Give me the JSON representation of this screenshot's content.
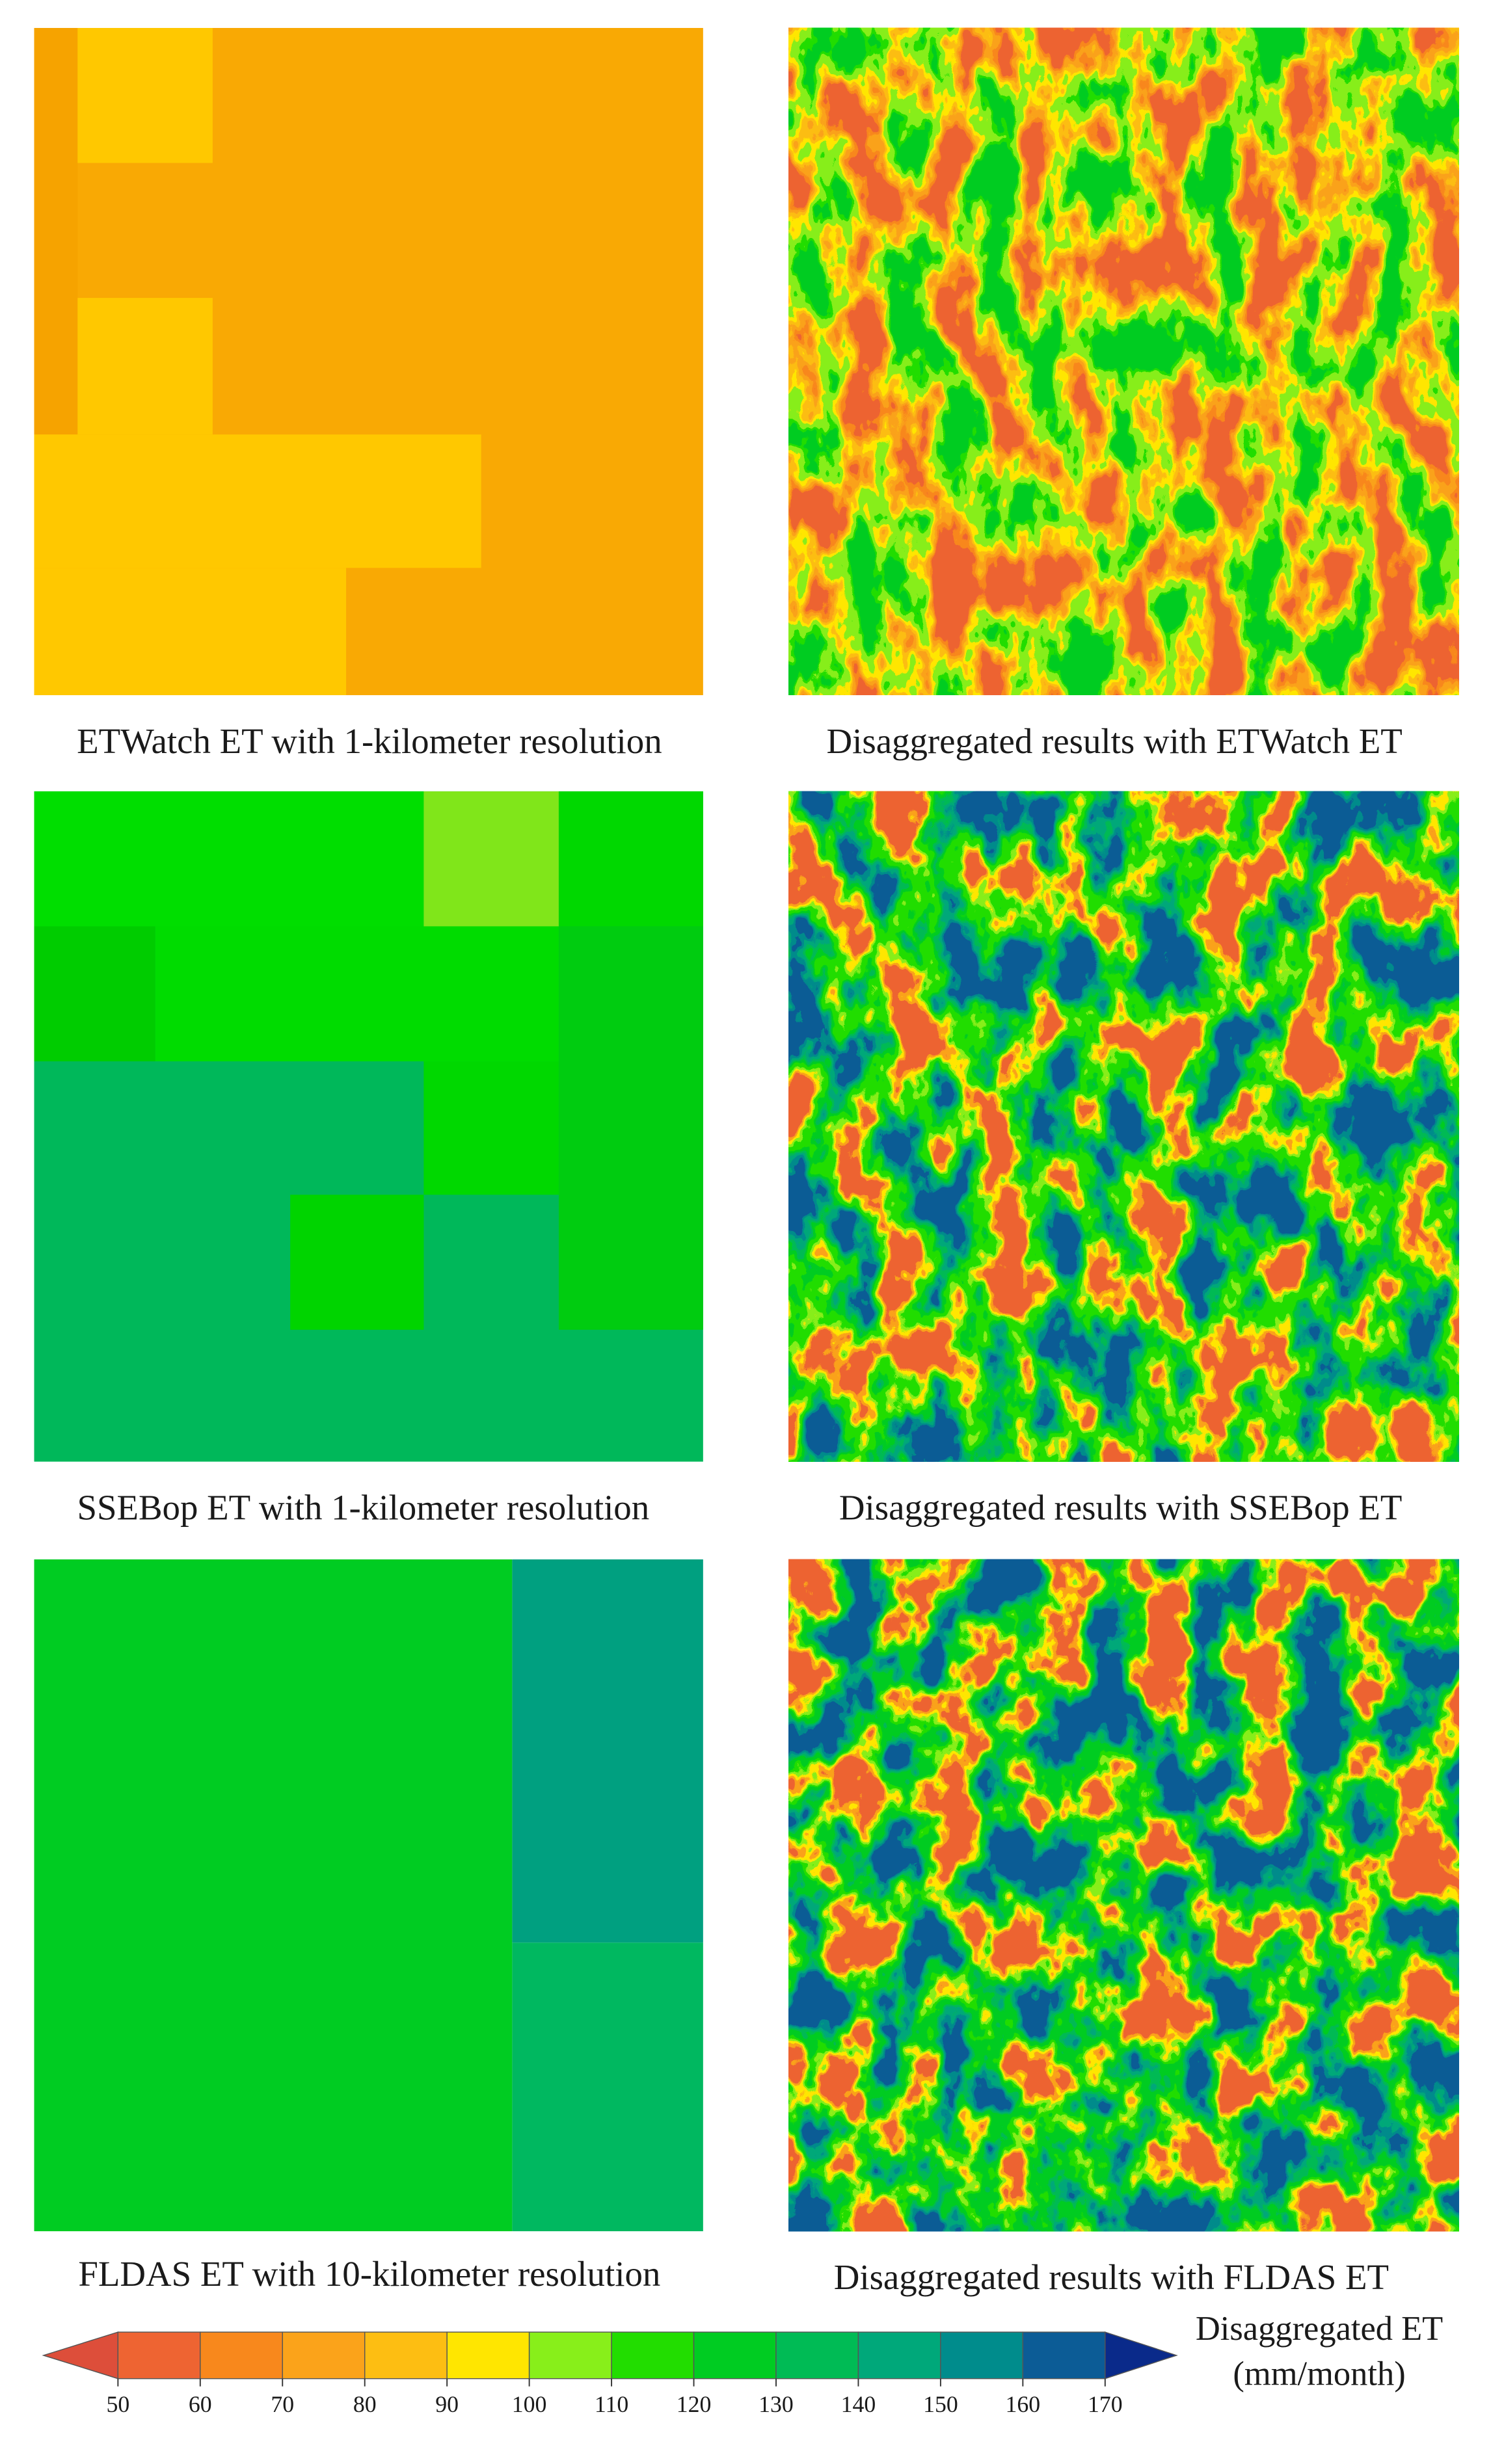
{
  "panels": [
    {
      "caption": "ETWatch ET with 1-kilometer resolution"
    },
    {
      "caption": "Disaggregated results with ETWatch ET"
    },
    {
      "caption": "SSEBop ET with 1-kilometer resolution"
    },
    {
      "caption": "Disaggregated results with SSEBop ET"
    },
    {
      "caption": "FLDAS ET with 10-kilometer resolution"
    },
    {
      "caption": "Disaggregated results with FLDAS ET"
    }
  ],
  "colorbar": {
    "title": "Disaggregated ET",
    "unit": "(mm/month)",
    "ticks": [
      50,
      60,
      70,
      80,
      90,
      100,
      110,
      120,
      130,
      140,
      150,
      160,
      170
    ],
    "colors": [
      "#ee6432",
      "#f8881c",
      "#fba31a",
      "#fdbe12",
      "#ffe600",
      "#88ef1a",
      "#22dd00",
      "#00cc22",
      "#00bb55",
      "#00a87a",
      "#008c8c",
      "#0c5c96"
    ],
    "under_color": "#dd4e3a",
    "over_color": "#0a2a8a"
  }
}
